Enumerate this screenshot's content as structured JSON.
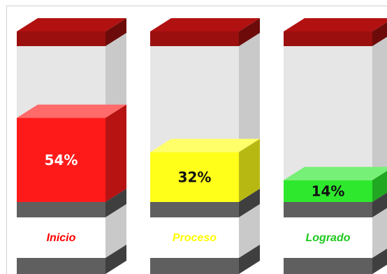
{
  "chart_data": {
    "type": "bar",
    "style": "3d-cylinder-columns",
    "categories": [
      "Inicio",
      "Proceso",
      "Logrado"
    ],
    "values": [
      54,
      32,
      14
    ],
    "value_labels": [
      "54%",
      "32%",
      "14%"
    ],
    "unit": "%",
    "ylim": [
      0,
      100
    ],
    "colors": [
      "#ff1a1a",
      "#ffff1a",
      "#2ee82e"
    ],
    "category_label_colors": [
      "#ff0000",
      "#ffff00",
      "#1ec81e"
    ],
    "value_label_colors": [
      "#ffffff",
      "#111111",
      "#111111"
    ],
    "cap_color": "#9b0f0f",
    "base_color": "#5f5f5f",
    "grid": false,
    "legend": "none"
  }
}
